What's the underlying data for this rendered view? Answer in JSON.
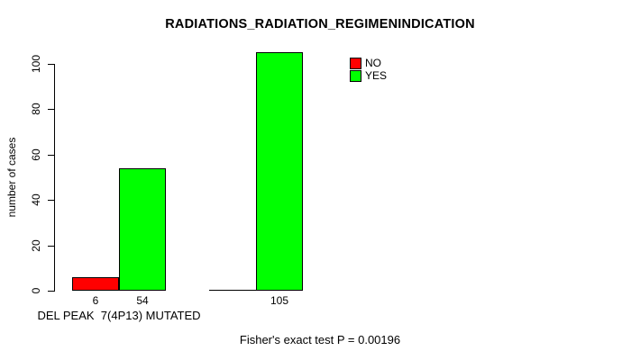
{
  "chart_data": {
    "type": "bar",
    "title": "RADIATIONS_RADIATION_REGIMENINDICATION",
    "ylabel": "number of cases",
    "xlabel": "",
    "axis_range": [
      0,
      100
    ],
    "yticks": [
      0,
      20,
      40,
      60,
      80,
      100
    ],
    "grid": false,
    "categories": [
      "DEL PEAK  7(4P13) MUTATED",
      ""
    ],
    "series": [
      {
        "name": "NO",
        "color": "#ff0000",
        "values": [
          6,
          0
        ]
      },
      {
        "name": "YES",
        "color": "#00ff00",
        "values": [
          54,
          105
        ]
      }
    ],
    "bar_count_labels": [
      [
        "6",
        ""
      ],
      [
        "54",
        "105"
      ]
    ],
    "legend": {
      "position": "top-right-inside",
      "entries": [
        {
          "label": "NO",
          "color": "#ff0000"
        },
        {
          "label": "YES",
          "color": "#00ff00"
        }
      ]
    },
    "annotation": "Fisher's exact test P = 0.00196"
  }
}
